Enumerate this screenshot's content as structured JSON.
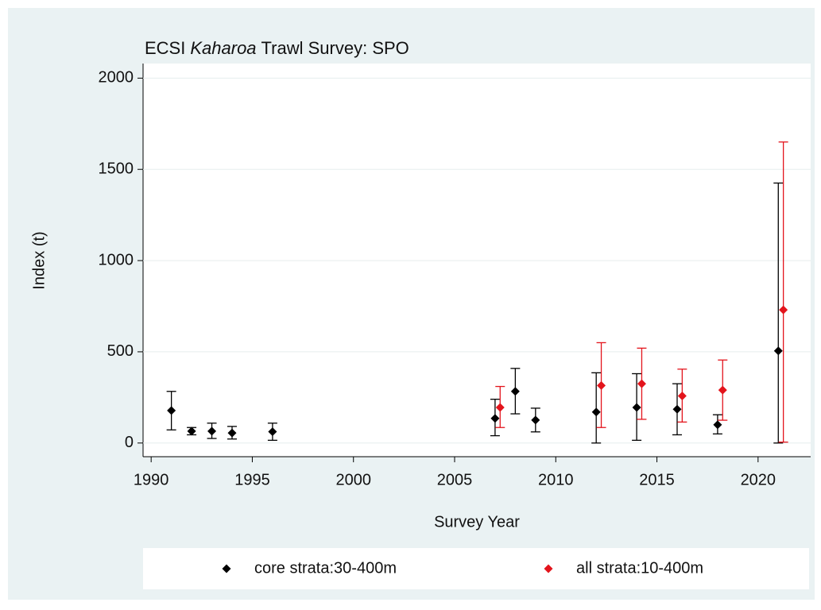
{
  "chart_data": {
    "type": "errorbar",
    "title": [
      "ECSI",
      "Kaharoa",
      "Trawl Survey: SPO"
    ],
    "x_label": "Survey Year",
    "y_label": "Index (t)",
    "xlim": [
      1989.6,
      2022.6
    ],
    "xticks": [
      1990,
      1995,
      2000,
      2005,
      2010,
      2015,
      2020
    ],
    "ylim": [
      -75,
      2080
    ],
    "yticks": [
      0,
      500,
      1000,
      1500,
      2000
    ],
    "grid": true,
    "series": [
      {
        "name": "core strata:30-400m",
        "color": "#000000",
        "x": [
          1991,
          1992,
          1993,
          1994,
          1996,
          2007,
          2008,
          2009,
          2012,
          2014,
          2016,
          2018,
          2021
        ],
        "values": [
          178,
          65,
          65,
          55,
          62,
          135,
          283,
          126,
          170,
          195,
          185,
          100,
          505
        ],
        "lower": [
          72,
          45,
          25,
          22,
          15,
          40,
          160,
          61,
          0,
          15,
          45,
          50,
          0
        ],
        "upper": [
          283,
          85,
          109,
          91,
          109,
          240,
          409,
          191,
          385,
          380,
          325,
          155,
          1425
        ]
      },
      {
        "name": "all strata:10-400m",
        "color": "#e3141c",
        "x": [
          2007.25,
          2012.25,
          2014.25,
          2016.25,
          2018.25,
          2021.25
        ],
        "values": [
          195,
          315,
          325,
          258,
          290,
          730
        ],
        "lower": [
          85,
          85,
          130,
          115,
          125,
          5
        ],
        "upper": [
          310,
          550,
          520,
          405,
          455,
          1650
        ]
      }
    ]
  }
}
